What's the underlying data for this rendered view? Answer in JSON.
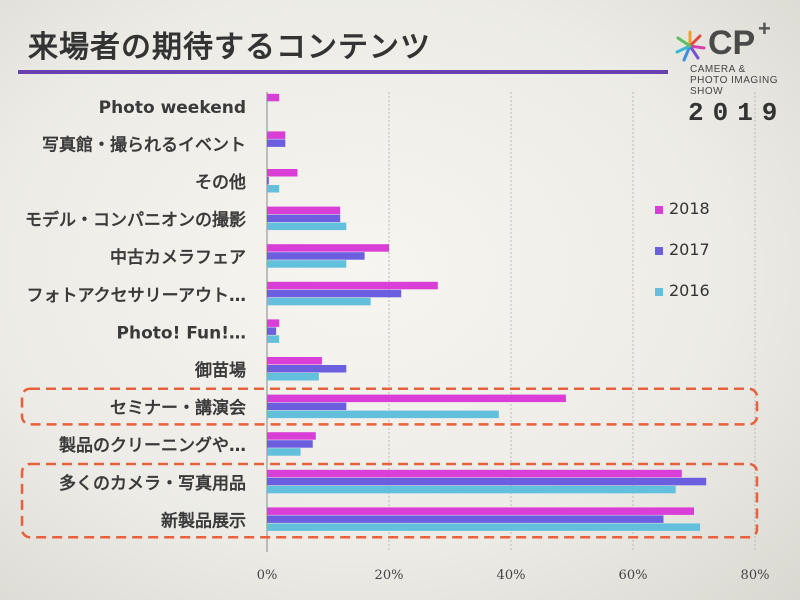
{
  "slide": {
    "title": "来場者の期待するコンテンツ"
  },
  "logo": {
    "brand": "CP",
    "plus": "+",
    "line1": "CAMERA &",
    "line2": "PHOTO IMAGING",
    "line3": "SHOW",
    "year": "2019"
  },
  "colors": {
    "title_rule": "#6a3fb0",
    "highlight_box": "#e8603c"
  },
  "chart_data": {
    "type": "bar",
    "orientation": "horizontal",
    "categories": [
      "Photo weekend",
      "写真館・撮られるイベント",
      "その他",
      "モデル・コンパニオンの撮影",
      "中古カメラフェア",
      "フォトアクセサリーアウト…",
      "Photo! Fun!…",
      "御苗場",
      "セミナー・講演会",
      "製品のクリーニングや…",
      "多くのカメラ・写真用品",
      "新製品展示"
    ],
    "series": [
      {
        "name": "2018",
        "color": "#d93fd6",
        "values": [
          2,
          3,
          5,
          12,
          20,
          28,
          2,
          9,
          49,
          8,
          68,
          70
        ]
      },
      {
        "name": "2017",
        "color": "#6b5fe0",
        "values": [
          null,
          3,
          0.3,
          12,
          16,
          22,
          1.5,
          13,
          13,
          7.5,
          72,
          65
        ]
      },
      {
        "name": "2016",
        "color": "#63c0dc",
        "values": [
          null,
          null,
          2,
          13,
          13,
          17,
          2,
          8.5,
          38,
          5.5,
          67,
          71
        ]
      }
    ],
    "xlim": [
      0,
      80
    ],
    "xticks": [
      "0%",
      "20%",
      "40%",
      "60%",
      "80%"
    ],
    "grid": true,
    "legend_position": "right",
    "highlighted_categories": [
      "セミナー・講演会",
      "多くのカメラ・写真用品",
      "新製品展示"
    ]
  }
}
